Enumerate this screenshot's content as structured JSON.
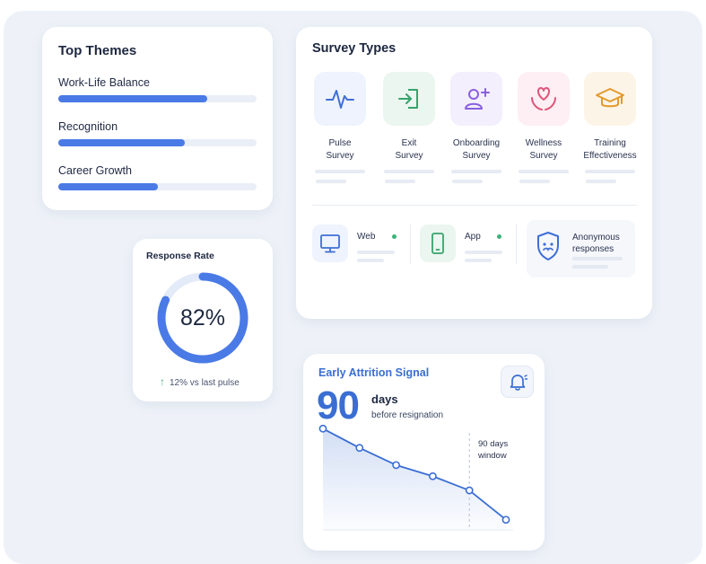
{
  "top_themes": {
    "title": "Top Themes",
    "items": [
      {
        "label": "Work-Life Balance",
        "fraction": 0.75
      },
      {
        "label": "Recognition",
        "fraction": 0.64
      },
      {
        "label": "Career Growth",
        "fraction": 0.5
      }
    ],
    "accent": "#4a7ae6",
    "track": "#e9eef7"
  },
  "survey_types": {
    "title": "Survey Types",
    "types": [
      {
        "label_line1": "Pulse",
        "label_line2": "Survey",
        "icon": "pulse-icon",
        "bg": "#eef3fd",
        "color": "#3f6fd6"
      },
      {
        "label_line1": "Exit",
        "label_line2": "Survey",
        "icon": "exit-icon",
        "bg": "#eaf6ef",
        "color": "#37a36c"
      },
      {
        "label_line1": "Onboarding",
        "label_line2": "Survey",
        "icon": "add-user-icon",
        "bg": "#f3effd",
        "color": "#8a5fe0"
      },
      {
        "label_line1": "Wellness",
        "label_line2": "Survey",
        "icon": "heart-hands-icon",
        "bg": "#fdeff3",
        "color": "#e0547a"
      },
      {
        "label_line1": "Training",
        "label_line2": "Effectiveness",
        "icon": "graduation-cap-icon",
        "bg": "#fdf4e8",
        "color": "#e39a2c"
      }
    ],
    "channels": [
      {
        "label": "Web",
        "icon": "monitor-icon",
        "bg": "#eef3fd",
        "color": "#3f6fd6",
        "status": "#3db37a"
      },
      {
        "label": "App",
        "icon": "phone-icon",
        "bg": "#eaf6ef",
        "color": "#37a36c",
        "status": "#3db37a"
      }
    ],
    "anonymous": {
      "line1": "Anonymous",
      "line2": "responses",
      "icon": "shield-mask-icon",
      "color": "#3f6fd6"
    }
  },
  "response_rate": {
    "title": "Response Rate",
    "value_text": "82%",
    "value": 0.82,
    "delta_text": "12% vs last pulse",
    "ring_color": "#4a7ae6",
    "ring_track": "#e3eaf8"
  },
  "attrition": {
    "title": "Early Attrition Signal",
    "big_value": "90",
    "unit": "days",
    "subtitle": "before resignation",
    "window_line1": "90 days",
    "window_line2": "window",
    "icon": "bell-icon",
    "color": "#3a6ed3"
  },
  "chart_data": {
    "type": "line",
    "title": "",
    "xlabel": "",
    "ylabel": "",
    "x": [
      0,
      1,
      2,
      3,
      4,
      5
    ],
    "values": [
      1.0,
      0.81,
      0.64,
      0.53,
      0.39,
      0.1
    ],
    "ylim": [
      0,
      1.1
    ],
    "grid": false,
    "annotation": {
      "x_index": 4,
      "text": "90 days window"
    }
  }
}
